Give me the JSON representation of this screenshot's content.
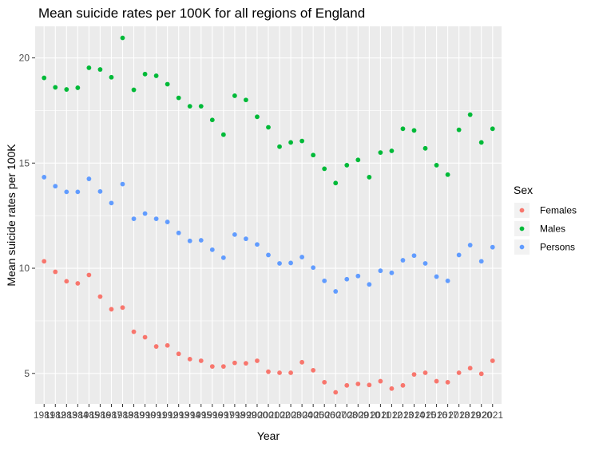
{
  "chart_data": {
    "type": "scatter",
    "title": "Mean suicide rates per 100K for all regions of England",
    "xlabel": "Year",
    "ylabel": "Mean suicide rates per 100K",
    "x": [
      1981,
      1982,
      1983,
      1984,
      1985,
      1986,
      1987,
      1988,
      1989,
      1990,
      1991,
      1992,
      1993,
      1994,
      1995,
      1996,
      1997,
      1998,
      1999,
      2000,
      2001,
      2002,
      2003,
      2004,
      2005,
      2006,
      2007,
      2008,
      2009,
      2010,
      2011,
      2012,
      2013,
      2014,
      2015,
      2016,
      2017,
      2018,
      2019,
      2020,
      2021
    ],
    "x_tick_labels": [
      "1981",
      "1982",
      "1983",
      "1984",
      "1985",
      "1986",
      "1987",
      "1988",
      "1989",
      "1990",
      "1991",
      "1992",
      "1993",
      "1994",
      "1995",
      "1996",
      "1997",
      "1998",
      "1999",
      "2000",
      "2001",
      "2002",
      "2003",
      "2004",
      "2005",
      "2006",
      "2007",
      "2008",
      "2009",
      "2010",
      "2011",
      "2012",
      "2013",
      "2014",
      "2015",
      "2016",
      "2017",
      "2018",
      "2019",
      "2020",
      "2021"
    ],
    "y_ticks": [
      5,
      10,
      15,
      20
    ],
    "ylim": [
      3.55,
      21.5
    ],
    "grid": true,
    "legend": {
      "title": "Sex",
      "placement": "right"
    },
    "series": [
      {
        "name": "Females",
        "color": "#F8766D",
        "values": [
          10.33,
          9.83,
          9.38,
          9.28,
          9.68,
          8.65,
          8.05,
          8.13,
          6.98,
          6.72,
          6.28,
          6.33,
          5.93,
          5.68,
          5.6,
          5.33,
          5.33,
          5.5,
          5.48,
          5.6,
          5.08,
          5.03,
          5.03,
          5.53,
          5.15,
          4.58,
          4.1,
          4.43,
          4.5,
          4.45,
          4.63,
          4.28,
          4.43,
          4.95,
          5.03,
          4.63,
          4.58,
          5.03,
          5.25,
          4.98,
          5.6
        ]
      },
      {
        "name": "Males",
        "color": "#00BA38",
        "values": [
          19.05,
          18.6,
          18.5,
          18.58,
          19.53,
          19.45,
          19.08,
          20.95,
          18.48,
          19.23,
          19.15,
          18.75,
          18.1,
          17.7,
          17.7,
          17.05,
          16.35,
          18.2,
          18.0,
          17.2,
          16.7,
          15.78,
          15.98,
          16.05,
          15.38,
          14.73,
          14.05,
          14.9,
          15.15,
          14.33,
          15.5,
          15.58,
          16.63,
          16.55,
          15.7,
          14.9,
          14.45,
          16.58,
          17.3,
          15.98,
          16.63
        ]
      },
      {
        "name": "Persons",
        "color": "#619CFF",
        "values": [
          14.33,
          13.9,
          13.63,
          13.63,
          14.25,
          13.65,
          13.1,
          14.0,
          12.35,
          12.6,
          12.35,
          12.2,
          11.68,
          11.3,
          11.33,
          10.88,
          10.5,
          11.6,
          11.4,
          11.13,
          10.63,
          10.23,
          10.25,
          10.53,
          10.03,
          9.4,
          8.9,
          9.48,
          9.63,
          9.23,
          9.88,
          9.78,
          10.38,
          10.6,
          10.23,
          9.6,
          9.4,
          10.63,
          11.1,
          10.33,
          11.0
        ]
      }
    ]
  }
}
